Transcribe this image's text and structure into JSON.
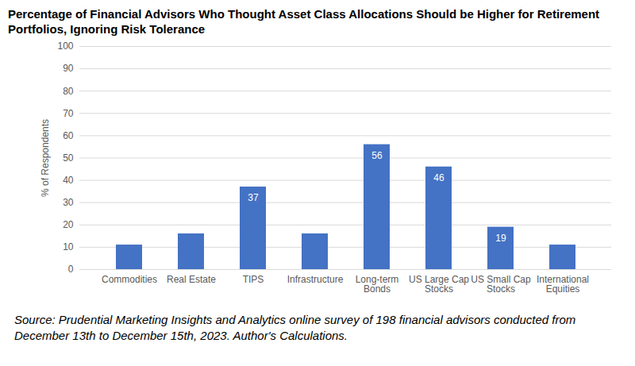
{
  "chart_data": {
    "type": "bar",
    "title": "Percentage of Financial Advisors Who Thought Asset Class Allocations Should be Higher for Retirement Portfolios, Ignoring Risk Tolerance",
    "caption": "Source: Prudential Marketing Insights and Analytics online survey of 198 financial advisors conducted from December 13th to December 15th, 2023. Author's Calculations.",
    "y_label": "% of Respondents",
    "categories": [
      "Commodities",
      "Real Estate",
      "TIPS",
      "Infrastructure",
      "Long-term Bonds",
      "US Large Cap Stocks",
      "US Small Cap Stocks",
      "International Equities"
    ],
    "values": [
      11,
      16,
      37,
      16,
      56,
      46,
      19,
      11
    ],
    "value_labels": [
      null,
      null,
      "37",
      null,
      "56",
      "46",
      "19",
      null
    ],
    "color": "#4472c4",
    "ylim": [
      0,
      100
    ],
    "yticks": [
      0,
      10,
      20,
      30,
      40,
      50,
      60,
      70,
      80,
      90,
      100
    ],
    "grid": true,
    "data_labels": true
  }
}
